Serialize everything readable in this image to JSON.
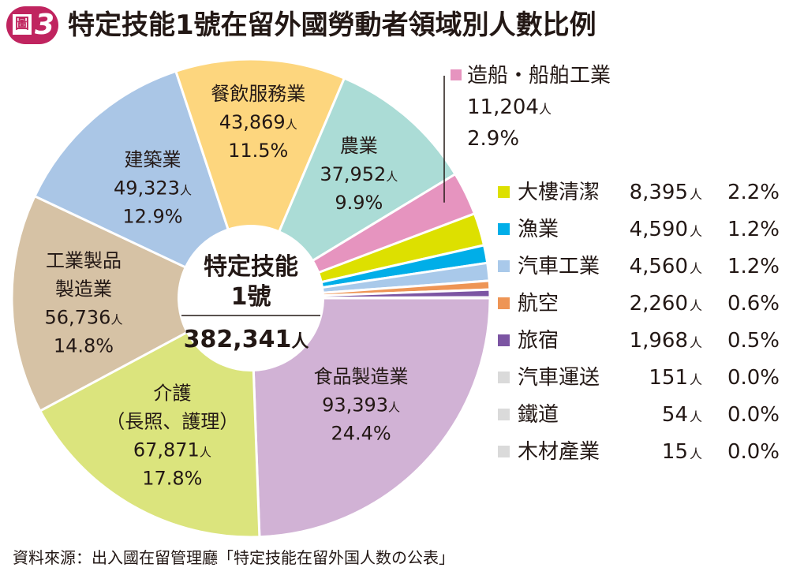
{
  "figure": {
    "badge_char": "圖",
    "badge_number": "3"
  },
  "source_note": "資料來源：出入國在留管理廳「特定技能在留外国人数の公表」",
  "chart_data": {
    "type": "pie",
    "title": "特定技能1號在留外國勞動者領域別人數比例",
    "unit": "人",
    "center_label": {
      "line1": "特定技能",
      "line2": "1號",
      "total": "382,341",
      "unit": "人"
    },
    "slices": [
      {
        "name": "食品製造業",
        "value": 93393,
        "value_label": "93,393",
        "percent": "24.4%",
        "color": "#d1b2d5"
      },
      {
        "name": "介護",
        "name_line2": "（長照、護理）",
        "value": 67871,
        "value_label": "67,871",
        "percent": "17.8%",
        "color": "#dbe47d"
      },
      {
        "name": "工業製品",
        "name_line2": "製造業",
        "value": 56736,
        "value_label": "56,736",
        "percent": "14.8%",
        "color": "#d6c2a5"
      },
      {
        "name": "建築業",
        "value": 49323,
        "value_label": "49,323",
        "percent": "12.9%",
        "color": "#aac6e6"
      },
      {
        "name": "餐飲服務業",
        "value": 43869,
        "value_label": "43,869",
        "percent": "11.5%",
        "color": "#fdd67e"
      },
      {
        "name": "農業",
        "value": 37952,
        "value_label": "37,952",
        "percent": "9.9%",
        "color": "#abdcd6"
      },
      {
        "name": "造船・船舶工業",
        "value": 11204,
        "value_label": "11,204",
        "percent": "2.9%",
        "color": "#e694bf"
      },
      {
        "name": "大樓清潔",
        "value": 8395,
        "value_label": "8,395",
        "percent": "2.2%",
        "color": "#dde000"
      },
      {
        "name": "漁業",
        "value": 4590,
        "value_label": "4,590",
        "percent": "1.2%",
        "color": "#00aee8"
      },
      {
        "name": "汽車工業",
        "value": 4560,
        "value_label": "4,560",
        "percent": "1.2%",
        "color": "#a9c9ea"
      },
      {
        "name": "航空",
        "value": 2260,
        "value_label": "2,260",
        "percent": "0.6%",
        "color": "#ee9555"
      },
      {
        "name": "旅宿",
        "value": 1968,
        "value_label": "1,968",
        "percent": "0.5%",
        "color": "#7c55a3"
      },
      {
        "name": "汽車運送",
        "value": 151,
        "value_label": "151",
        "percent": "0.0%",
        "color": "#dadada"
      },
      {
        "name": "鐵道",
        "value": 54,
        "value_label": "54",
        "percent": "0.0%",
        "color": "#dadada"
      },
      {
        "name": "木材產業",
        "value": 15,
        "value_label": "15",
        "percent": "0.0%",
        "color": "#dadada"
      }
    ]
  }
}
